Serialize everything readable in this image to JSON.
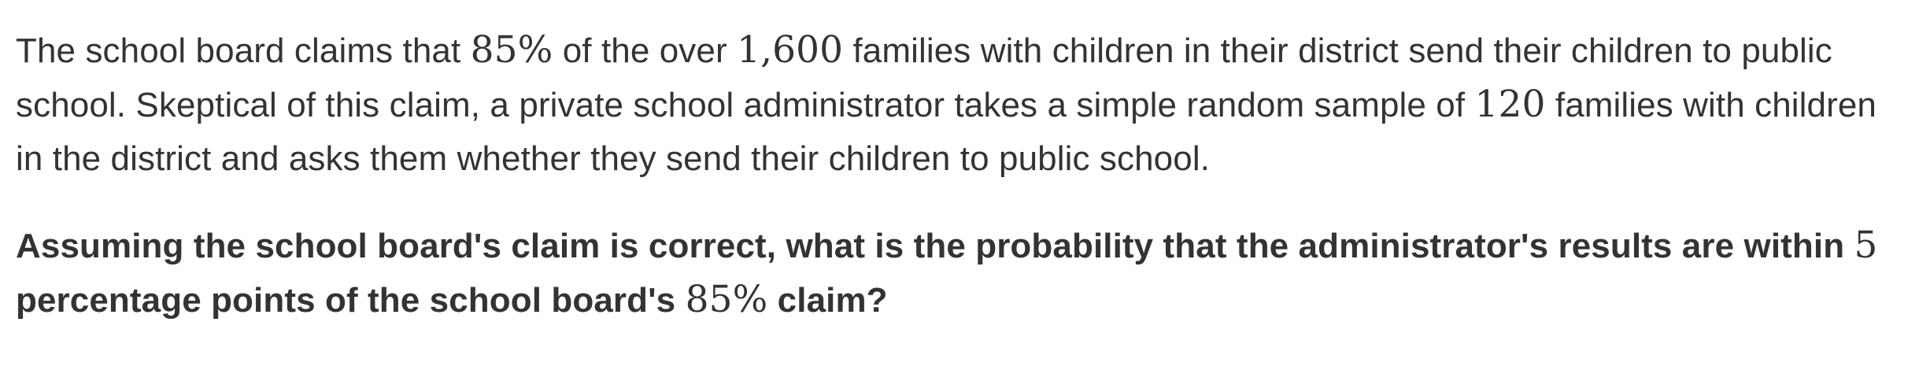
{
  "problem": {
    "s1": "The school board claims that ",
    "m1": "85%",
    "s2": " of the over ",
    "m2": "1,600",
    "s3": " families with children in their district send their children to public school. Skeptical of this claim, a private school administrator takes a simple random sample of ",
    "m3": "120",
    "s4": " families with children in the district and asks them whether they send their children to public school."
  },
  "question": {
    "s1": "Assuming the school board's claim is correct, what is the probability that the administrator's results are within ",
    "m1": "5",
    "s2": " percentage points of the school board's ",
    "m2": "85%",
    "s3": " claim?"
  }
}
